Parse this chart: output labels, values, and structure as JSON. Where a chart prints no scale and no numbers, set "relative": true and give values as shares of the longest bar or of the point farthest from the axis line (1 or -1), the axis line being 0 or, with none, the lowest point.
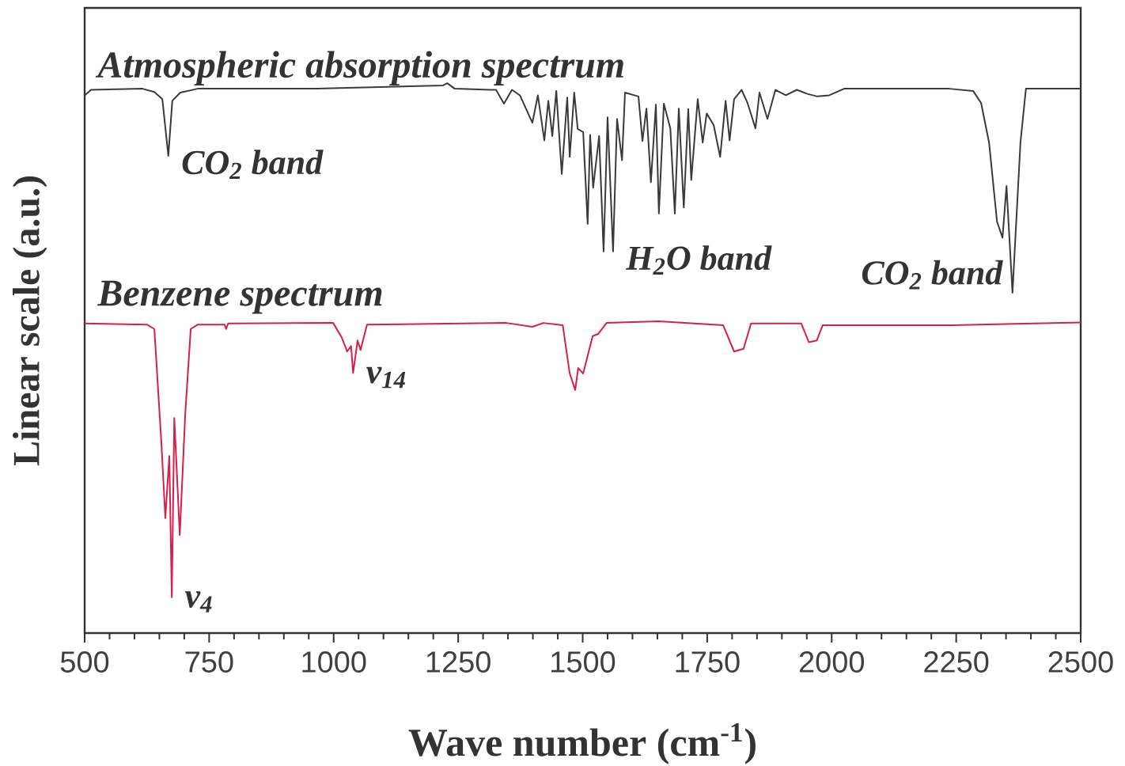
{
  "chart_data": {
    "type": "line",
    "relative": true,
    "xlabel": "Wave number (cm$^{-1}$)",
    "ylabel": "Linear scale (a.u.)",
    "xlim": [
      500,
      2500
    ],
    "xticks": [
      500,
      {
        "value": 550,
        "label": null
      },
      {
        "value": 600,
        "label": null
      },
      {
        "value": 650,
        "label": null
      },
      {
        "value": 700,
        "label": null
      },
      750,
      {
        "value": 800,
        "label": null
      },
      {
        "value": 850,
        "label": null
      },
      {
        "value": 900,
        "label": null
      },
      {
        "value": 950,
        "label": null
      },
      1000,
      {
        "value": 1050,
        "label": null
      },
      {
        "value": 1100,
        "label": null
      },
      {
        "value": 1150,
        "label": null
      },
      {
        "value": 1200,
        "label": null
      },
      1250,
      {
        "value": 1300,
        "label": null
      },
      {
        "value": 1350,
        "label": null
      },
      {
        "value": 1400,
        "label": null
      },
      {
        "value": 1450,
        "label": null
      },
      1500,
      {
        "value": 1550,
        "label": null
      },
      {
        "value": 1600,
        "label": null
      },
      {
        "value": 1650,
        "label": null
      },
      {
        "value": 1700,
        "label": null
      },
      1750,
      {
        "value": 1800,
        "label": null
      },
      {
        "value": 1850,
        "label": null
      },
      {
        "value": 1900,
        "label": null
      },
      {
        "value": 1950,
        "label": null
      },
      2000,
      {
        "value": 2050,
        "label": null
      },
      {
        "value": 2100,
        "label": null
      },
      {
        "value": 2150,
        "label": null
      },
      {
        "value": 2200,
        "label": null
      },
      2250,
      {
        "value": 2300,
        "label": null
      },
      {
        "value": 2350,
        "label": null
      },
      {
        "value": 2400,
        "label": null
      },
      {
        "value": 2450,
        "label": null
      },
      2500
    ],
    "series": [
      {
        "name": "Atmospheric absorption spectrum",
        "color": "#3a3a3a",
        "x": [
          500,
          513,
          616,
          640,
          656,
          668,
          676,
          692,
          727,
          965,
          1220,
          1228,
          1243,
          1315,
          1326,
          1342,
          1358,
          1374,
          1399,
          1410,
          1423,
          1431,
          1439,
          1447,
          1458,
          1469,
          1474,
          1483,
          1490,
          1501,
          1510,
          1515,
          1521,
          1533,
          1542,
          1550,
          1561,
          1569,
          1579,
          1585,
          1612,
          1620,
          1628,
          1637,
          1647,
          1653,
          1663,
          1676,
          1685,
          1693,
          1703,
          1712,
          1718,
          1731,
          1741,
          1749,
          1763,
          1776,
          1787,
          1795,
          1804,
          1819,
          1831,
          1847,
          1855,
          1871,
          1887,
          1908,
          1930,
          1950,
          1971,
          1995,
          2025,
          2236,
          2284,
          2300,
          2316,
          2332,
          2343,
          2351,
          2363,
          2379,
          2390,
          2500
        ],
        "values": [
          0.978,
          0.988,
          0.99,
          0.984,
          0.971,
          0.868,
          0.968,
          0.983,
          0.99,
          0.99,
          0.996,
          1.0,
          0.99,
          0.988,
          0.988,
          0.963,
          0.988,
          0.978,
          0.928,
          0.978,
          0.896,
          0.968,
          0.904,
          0.986,
          0.835,
          0.974,
          0.866,
          0.983,
          0.917,
          0.911,
          0.744,
          0.906,
          0.81,
          0.904,
          0.694,
          0.938,
          0.694,
          0.935,
          0.86,
          0.983,
          0.976,
          0.895,
          0.954,
          0.82,
          0.961,
          0.763,
          0.963,
          0.918,
          0.763,
          0.954,
          0.774,
          0.953,
          0.824,
          0.971,
          0.892,
          0.945,
          0.924,
          0.866,
          0.968,
          0.896,
          0.971,
          0.988,
          0.964,
          0.918,
          0.983,
          0.935,
          0.988,
          0.978,
          0.988,
          0.981,
          0.976,
          0.978,
          0.99,
          0.99,
          0.986,
          0.964,
          0.892,
          0.748,
          0.719,
          0.813,
          0.619,
          0.892,
          0.99,
          0.99
        ]
      },
      {
        "name": "Benzene spectrum",
        "color": "#d81f4a",
        "x": [
          500,
          625,
          640,
          654,
          662,
          670,
          675,
          680,
          691,
          702,
          713,
          727,
          781,
          784,
          788,
          999,
          1016,
          1027,
          1035,
          1039,
          1048,
          1054,
          1067,
          1347,
          1399,
          1421,
          1460,
          1474,
          1485,
          1491,
          1501,
          1520,
          1531,
          1548,
          1653,
          1782,
          1804,
          1823,
          1838,
          1939,
          1954,
          1970,
          1982,
          2240,
          2500
        ],
        "values": [
          0.563,
          0.561,
          0.553,
          0.347,
          0.209,
          0.322,
          0.065,
          0.391,
          0.178,
          0.399,
          0.553,
          0.561,
          0.561,
          0.553,
          0.563,
          0.564,
          0.538,
          0.512,
          0.522,
          0.473,
          0.532,
          0.515,
          0.561,
          0.564,
          0.557,
          0.564,
          0.56,
          0.472,
          0.442,
          0.482,
          0.472,
          0.54,
          0.544,
          0.564,
          0.567,
          0.56,
          0.512,
          0.517,
          0.563,
          0.563,
          0.529,
          0.532,
          0.56,
          0.56,
          0.565
        ]
      }
    ],
    "annotations": [
      {
        "text": "CO$_{2}$ band",
        "x": 668,
        "y": 0.868
      },
      {
        "text": "H$_{2}$O band",
        "x": 1561,
        "y": 0.694
      },
      {
        "text": "CO$_{2}$ band",
        "x": 2363,
        "y": 0.619
      },
      {
        "text": "ν$_{4}$",
        "x": 675,
        "y": 0.065
      },
      {
        "text": "ν$_{14}$",
        "x": 1039,
        "y": 0.473
      }
    ]
  }
}
